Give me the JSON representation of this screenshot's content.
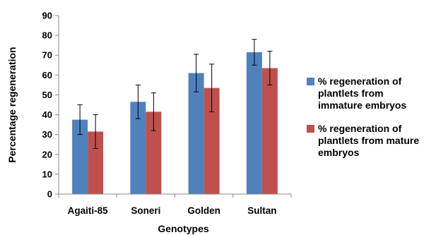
{
  "chart_data": {
    "type": "bar",
    "categories": [
      "Agaiti-85",
      "Soneri",
      "Golden",
      "Sultan"
    ],
    "series": [
      {
        "name": "% regeneration of plantlets from immature embryos",
        "legend_lines": [
          "% regeneration of",
          "plantlets from",
          "immature embryos"
        ],
        "color": "#4F81BD",
        "values": [
          37.5,
          46.5,
          61,
          71.5
        ],
        "errors": [
          7.5,
          8.5,
          9.5,
          6.5
        ]
      },
      {
        "name": "% regeneration of plantlets from mature embryos",
        "legend_lines": [
          "% regeneration of",
          "plantlets from mature",
          "embryos"
        ],
        "color": "#C0504D",
        "values": [
          31.5,
          41.5,
          53.5,
          63.5
        ],
        "errors": [
          8.5,
          9.5,
          12,
          8.5
        ]
      }
    ],
    "xlabel": "Genotypes",
    "ylabel": "Percentage regeneration",
    "ylim": [
      0,
      90
    ],
    "yticks": [
      0,
      10,
      20,
      30,
      40,
      50,
      60,
      70,
      80,
      90
    ],
    "grid": false,
    "legend_position": "right"
  }
}
